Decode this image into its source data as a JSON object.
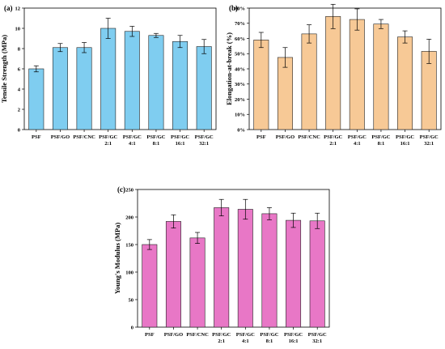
{
  "chart_data": [
    {
      "type": "bar",
      "panel": "(a)",
      "ylabel": "Tensile Strength (MPa)",
      "ylim": [
        0,
        12
      ],
      "yticks": [
        "0",
        "2",
        "4",
        "6",
        "8",
        "10",
        "12"
      ],
      "categories": [
        "PSF",
        "PSF/GO",
        "PSF/CNC",
        "PSF/GC 2:1",
        "PSF/GC 4:1",
        "PSF/GC 8:1",
        "PSF/GC 16:1",
        "PSF/GC 32:1"
      ],
      "values": [
        6.0,
        8.1,
        8.1,
        10.0,
        9.7,
        9.3,
        8.7,
        8.2
      ],
      "errors": [
        0.3,
        0.4,
        0.5,
        1.0,
        0.5,
        0.2,
        0.6,
        0.7
      ],
      "color": "#7fcdf0"
    },
    {
      "type": "bar",
      "panel": "(b)",
      "ylabel": "Elongation-at-break (%)",
      "ylim": [
        0,
        80
      ],
      "yticks": [
        "0%",
        "10%",
        "20%",
        "30%",
        "40%",
        "50%",
        "60%",
        "70%",
        "80%"
      ],
      "categories": [
        "PSF",
        "PSF/GO",
        "PSF/CNC",
        "PSF/GC 2:1",
        "PSF/GC 4:1",
        "PSF/GC 8:1",
        "PSF/GC 16:1",
        "PSF/GC 32:1"
      ],
      "values": [
        59,
        47.5,
        63,
        74.5,
        72.5,
        69.5,
        61,
        51.5
      ],
      "errors": [
        5,
        6.5,
        6,
        8,
        7,
        3,
        4,
        8
      ],
      "color": "#f7c996"
    },
    {
      "type": "bar",
      "panel": "(c)",
      "ylabel": "Young's Modulus (MPa)",
      "ylim": [
        0,
        250
      ],
      "yticks": [
        "0",
        "50",
        "100",
        "150",
        "200",
        "250"
      ],
      "categories": [
        "PSF",
        "PSF/GO",
        "PSF/CNC",
        "PSF/GC 2:1",
        "PSF/GC 4:1",
        "PSF/GC 8:1",
        "PSF/GC 16:1",
        "PSF/GC 32:1"
      ],
      "values": [
        150,
        192,
        162,
        217,
        214,
        206,
        194,
        193
      ],
      "errors": [
        9,
        12,
        10,
        15,
        18,
        11,
        13,
        14
      ],
      "color": "#e877c6"
    }
  ]
}
